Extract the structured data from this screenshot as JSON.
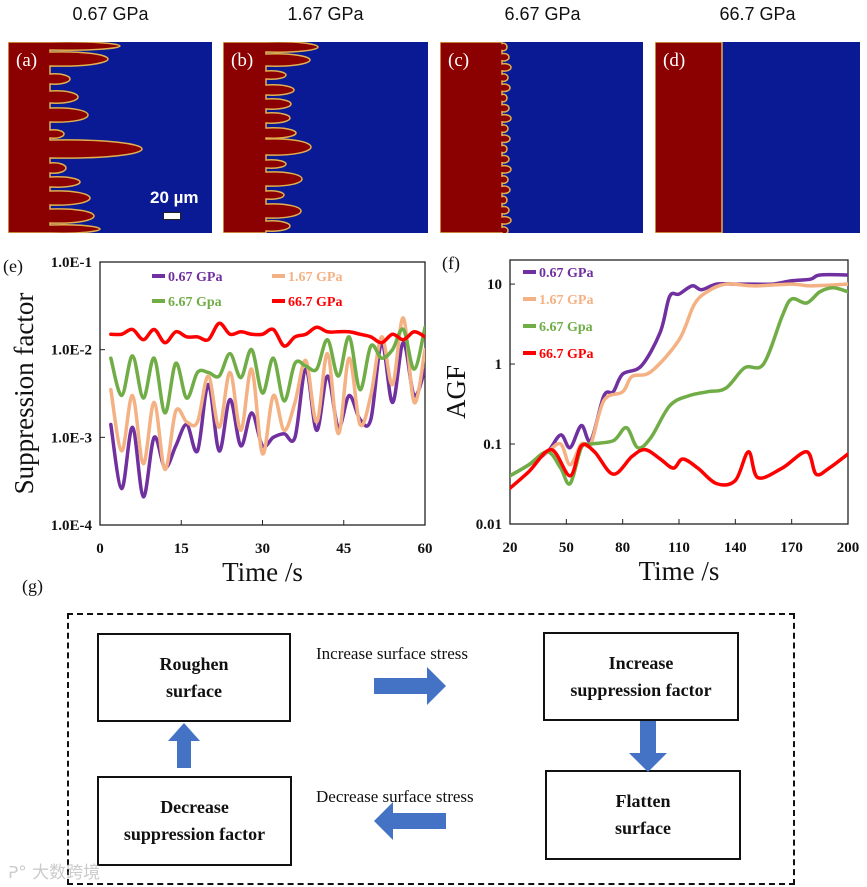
{
  "panels": [
    {
      "pressure": "0.67 GPa",
      "label": "(a)"
    },
    {
      "pressure": "1.67 GPa",
      "label": "(b)"
    },
    {
      "pressure": "6.67 GPa",
      "label": "(c)"
    },
    {
      "pressure": "66.7 GPa",
      "label": "(d)"
    }
  ],
  "scale_bar": "20 µm",
  "colors": {
    "dendrite": "#8b0000",
    "electrolyte": "#0a1a94",
    "interface": "#e0b050",
    "purple": "#7030a0",
    "orange": "#f4b183",
    "green": "#70ad47",
    "red": "#ff0000",
    "arrow": "#4472c4"
  },
  "chart_data": [
    {
      "panel_label": "(e)",
      "type": "line",
      "title": "",
      "xlabel": "Time /s",
      "ylabel": "Suppression factor",
      "xlim": [
        0,
        60
      ],
      "ylim": [
        0.0001,
        0.1
      ],
      "yscale": "log",
      "xticks": [
        "0",
        "15",
        "30",
        "45",
        "60"
      ],
      "yticks": [
        "1.0E-1",
        "1.0E-2",
        "1.0E-3",
        "1.0E-4"
      ],
      "legend": "top",
      "x": [
        2,
        4,
        6,
        8,
        10,
        12,
        14,
        16,
        18,
        20,
        22,
        24,
        26,
        28,
        30,
        32,
        34,
        36,
        38,
        40,
        42,
        44,
        46,
        48,
        50,
        52,
        54,
        56,
        58,
        60
      ],
      "series": [
        {
          "name": "0.67 GPa",
          "color": "#7030a0",
          "values": [
            0.0014,
            0.00026,
            0.0013,
            0.00021,
            0.001,
            0.00045,
            0.0008,
            0.0014,
            0.0007,
            0.004,
            0.0007,
            0.0027,
            0.0008,
            0.0019,
            0.0008,
            0.001,
            0.0011,
            0.001,
            0.006,
            0.0012,
            0.005,
            0.0013,
            0.003,
            0.0016,
            0.0016,
            0.012,
            0.0025,
            0.012,
            0.003,
            0.006
          ]
        },
        {
          "name": "1.67 GPa",
          "color": "#f4b183",
          "values": [
            0.0035,
            0.0007,
            0.003,
            0.0005,
            0.0025,
            0.00043,
            0.002,
            0.0015,
            0.0015,
            0.005,
            0.0013,
            0.0055,
            0.0012,
            0.006,
            0.00065,
            0.003,
            0.0012,
            0.0025,
            0.0075,
            0.0015,
            0.009,
            0.0011,
            0.008,
            0.0014,
            0.003,
            0.014,
            0.004,
            0.023,
            0.0025,
            0.01
          ]
        },
        {
          "name": "6.67 Gpa",
          "color": "#70ad47",
          "values": [
            0.008,
            0.003,
            0.0085,
            0.0028,
            0.008,
            0.0019,
            0.007,
            0.0028,
            0.0055,
            0.0055,
            0.005,
            0.009,
            0.0048,
            0.01,
            0.0032,
            0.008,
            0.0026,
            0.007,
            0.0065,
            0.006,
            0.013,
            0.005,
            0.014,
            0.0035,
            0.011,
            0.008,
            0.01,
            0.017,
            0.006,
            0.018
          ]
        },
        {
          "name": "66.7 GPa",
          "color": "#ff0000",
          "values": [
            0.015,
            0.015,
            0.017,
            0.013,
            0.017,
            0.012,
            0.016,
            0.014,
            0.014,
            0.013,
            0.02,
            0.015,
            0.016,
            0.015,
            0.015,
            0.017,
            0.011,
            0.014,
            0.015,
            0.018,
            0.016,
            0.016,
            0.016,
            0.015,
            0.014,
            0.012,
            0.015,
            0.013,
            0.016,
            0.014
          ]
        }
      ]
    },
    {
      "panel_label": "(f)",
      "type": "line",
      "title": "",
      "xlabel": "Time /s",
      "ylabel": "AGF",
      "xlim": [
        20,
        200
      ],
      "ylim": [
        0.01,
        20
      ],
      "yscale": "log",
      "xticks": [
        "20",
        "50",
        "80",
        "110",
        "140",
        "170",
        "200"
      ],
      "yticks": [
        "10",
        "1",
        "0.1",
        "0.01"
      ],
      "legend": "top-left",
      "series": [
        {
          "name": "0.67 GPa",
          "color": "#7030a0",
          "x": [
            20,
            30,
            40,
            47,
            52,
            58,
            63,
            70,
            75,
            80,
            90,
            100,
            105,
            110,
            117,
            122,
            130,
            140,
            150,
            160,
            170,
            180,
            185,
            200
          ],
          "values": [
            0.04,
            0.055,
            0.08,
            0.13,
            0.09,
            0.17,
            0.11,
            0.4,
            0.45,
            0.75,
            0.95,
            2.5,
            7,
            7.5,
            9.5,
            8.5,
            10,
            10,
            10,
            10,
            11,
            11.5,
            13,
            13
          ]
        },
        {
          "name": "1.67 GPa",
          "color": "#f4b183",
          "x": [
            20,
            30,
            40,
            47,
            52,
            58,
            63,
            70,
            80,
            85,
            95,
            110,
            118,
            125,
            135,
            150,
            170,
            180,
            200
          ],
          "values": [
            0.04,
            0.055,
            0.08,
            0.1,
            0.055,
            0.1,
            0.1,
            0.35,
            0.45,
            0.7,
            0.8,
            2,
            5.5,
            8,
            10,
            9.5,
            10,
            9.5,
            10
          ]
        },
        {
          "name": "6.67 Gpa",
          "color": "#70ad47",
          "x": [
            20,
            30,
            40,
            47,
            52,
            58,
            63,
            75,
            82,
            88,
            95,
            105,
            115,
            125,
            135,
            145,
            155,
            165,
            170,
            178,
            185,
            192,
            200
          ],
          "values": [
            0.04,
            0.055,
            0.08,
            0.05,
            0.032,
            0.09,
            0.1,
            0.11,
            0.16,
            0.09,
            0.12,
            0.3,
            0.4,
            0.45,
            0.5,
            0.9,
            1,
            4,
            6.5,
            5.8,
            8,
            9,
            8
          ]
        },
        {
          "name": "66.7 GPa",
          "color": "#ff0000",
          "x": [
            20,
            30,
            42,
            52,
            58,
            65,
            75,
            85,
            92,
            100,
            107,
            112,
            120,
            130,
            140,
            147,
            152,
            165,
            178,
            183,
            190,
            200
          ],
          "values": [
            0.028,
            0.045,
            0.085,
            0.04,
            0.095,
            0.08,
            0.042,
            0.07,
            0.085,
            0.065,
            0.05,
            0.065,
            0.05,
            0.032,
            0.035,
            0.08,
            0.038,
            0.05,
            0.08,
            0.042,
            0.05,
            0.075
          ]
        }
      ]
    }
  ],
  "diagram": {
    "panel_label": "(g)",
    "roughen": [
      "Roughen",
      "surface"
    ],
    "increase": [
      "Increase",
      "suppression factor"
    ],
    "flatten": [
      "Flatten",
      "surface"
    ],
    "decrease": [
      "Decrease",
      "suppression factor"
    ],
    "increase_stress": "Increase surface stress",
    "decrease_stress": "Decrease surface stress"
  },
  "watermark": "大数跨境"
}
